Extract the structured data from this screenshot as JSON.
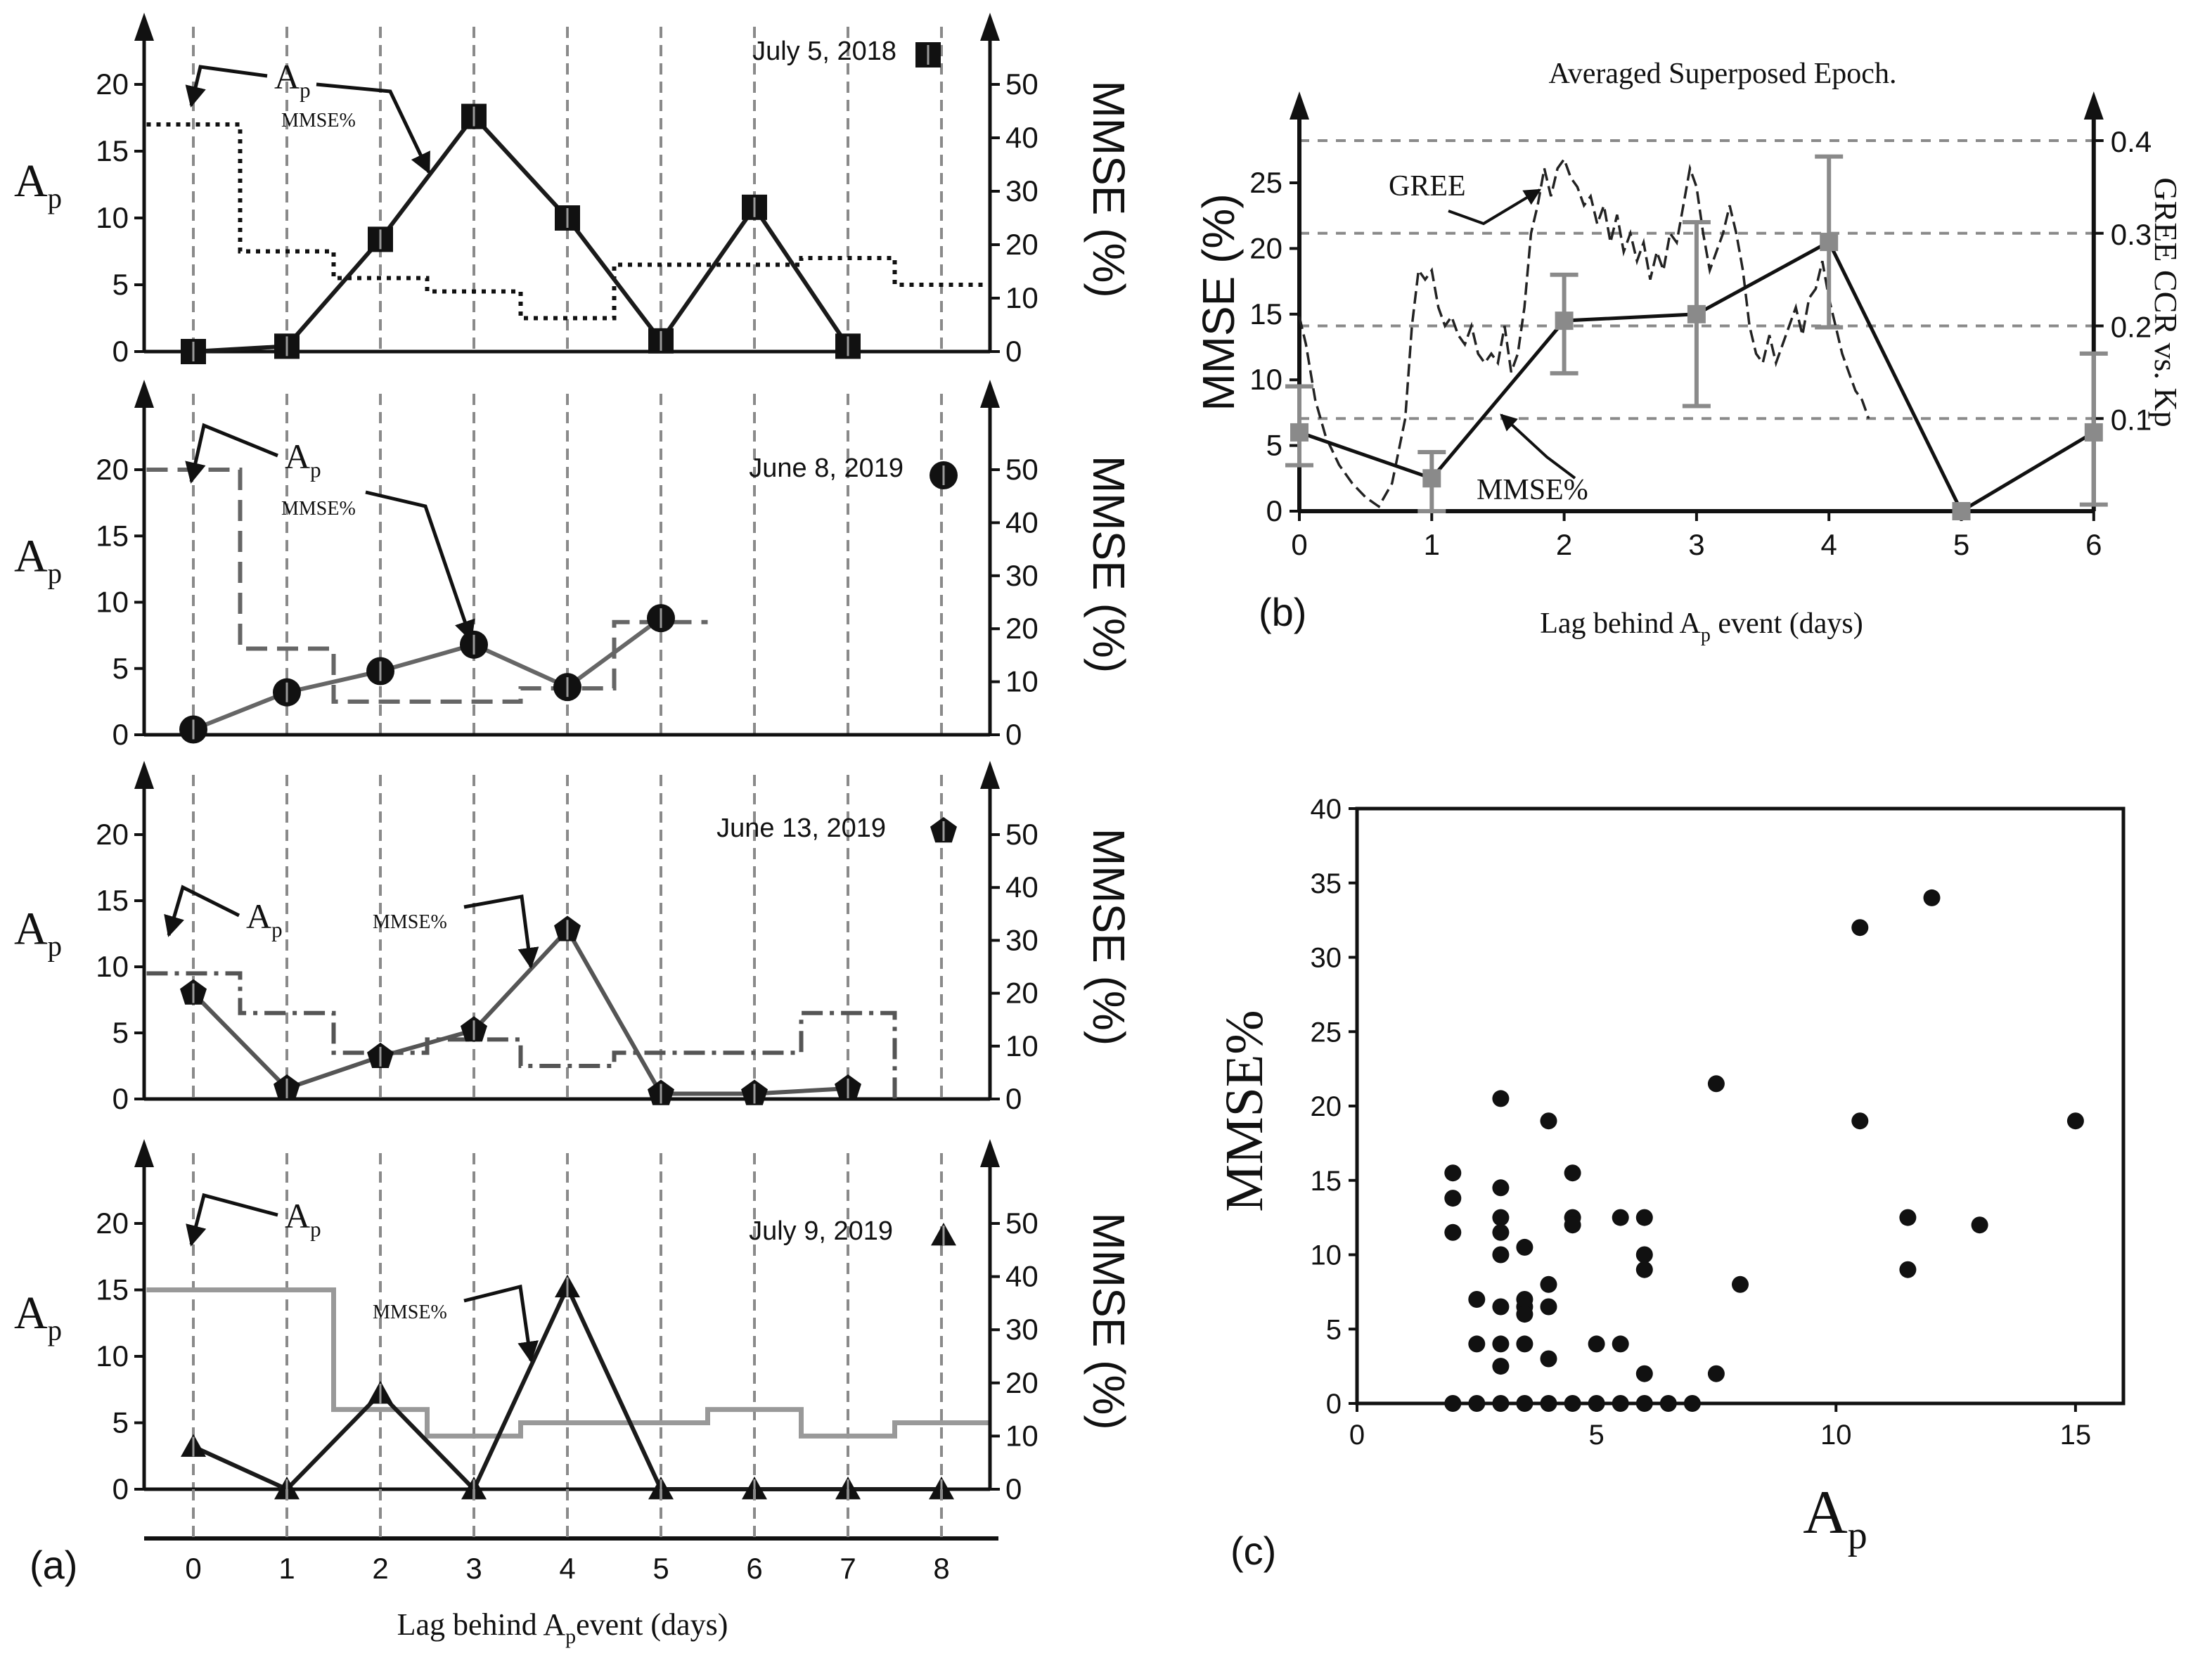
{
  "labels": {
    "panel_a": "(a)",
    "panel_b": "(b)",
    "panel_c": "(c)",
    "ap": "A",
    "ap_sub": "p",
    "mmse_right": "MMSE (%)",
    "mmse_pct": "MMSE%",
    "xlabel_a_pre": "Lag behind A",
    "xlabel_a_sub": "p",
    "xlabel_a_post": "event (days)",
    "xlabel_b_pre": "Lag behind A",
    "xlabel_b_sub": "p",
    "xlabel_b_post": " event (days)"
  },
  "chart_data": [
    {
      "id": "a1",
      "type": "line",
      "date": "July 5, 2018",
      "marker": "square",
      "lags": [
        0,
        1,
        2,
        3,
        4,
        5,
        6,
        7,
        8
      ],
      "mmse": [
        0,
        1,
        21,
        44,
        25,
        2,
        27,
        1,
        null
      ],
      "ap_step": [
        [
          -0.5,
          17
        ],
        [
          0.5,
          17
        ],
        [
          0.5,
          7.5
        ],
        [
          1.5,
          7.5
        ],
        [
          1.5,
          5.5
        ],
        [
          2.5,
          5.5
        ],
        [
          2.5,
          4.5
        ],
        [
          3.5,
          4.5
        ],
        [
          3.5,
          2.5
        ],
        [
          4.5,
          2.5
        ],
        [
          4.5,
          6.5
        ],
        [
          6.5,
          6.5
        ],
        [
          6.5,
          7
        ],
        [
          7.5,
          7
        ],
        [
          7.5,
          5
        ],
        [
          8.5,
          5
        ]
      ],
      "ap_style": "dotted",
      "ap_color": "#111111",
      "line_color": "#1a1a1a",
      "yleft_ticks": [
        0,
        5,
        10,
        15,
        20
      ],
      "yright_ticks": [
        0,
        10,
        20,
        30,
        40,
        50
      ],
      "ap_annotation": "A",
      "mmse_annotation": "MMSE%"
    },
    {
      "id": "a2",
      "type": "line",
      "date": "June 8, 2019",
      "marker": "circle",
      "lags": [
        0,
        1,
        2,
        3,
        4,
        5
      ],
      "mmse": [
        1,
        8,
        12,
        17,
        9,
        22
      ],
      "ap_step": [
        [
          -0.5,
          20
        ],
        [
          0.5,
          20
        ],
        [
          0.5,
          6.5
        ],
        [
          1.5,
          6.5
        ],
        [
          1.5,
          2.5
        ],
        [
          3.5,
          2.5
        ],
        [
          3.5,
          3.5
        ],
        [
          4.5,
          3.5
        ],
        [
          4.5,
          8.5
        ],
        [
          5.5,
          8.5
        ]
      ],
      "ap_style": "dashed",
      "ap_color": "#666666",
      "line_color": "#666666",
      "yleft_ticks": [
        0,
        5,
        10,
        15,
        20
      ],
      "yright_ticks": [
        0,
        10,
        20,
        30,
        40,
        50
      ],
      "ap_annotation": "A",
      "mmse_annotation": "MMSE%"
    },
    {
      "id": "a3",
      "type": "line",
      "date": "June 13, 2019",
      "marker": "pentagon",
      "lags": [
        0,
        1,
        2,
        3,
        4,
        5,
        6,
        7
      ],
      "mmse": [
        20,
        2,
        8,
        13,
        32,
        1,
        1,
        2
      ],
      "ap_step": [
        [
          -0.5,
          9.5
        ],
        [
          0.5,
          9.5
        ],
        [
          0.5,
          6.5
        ],
        [
          1.5,
          6.5
        ],
        [
          1.5,
          3.5
        ],
        [
          2.5,
          3.5
        ],
        [
          2.5,
          4.5
        ],
        [
          3.5,
          4.5
        ],
        [
          3.5,
          2.5
        ],
        [
          4.5,
          2.5
        ],
        [
          4.5,
          3.5
        ],
        [
          6.5,
          3.5
        ],
        [
          6.5,
          6.5
        ],
        [
          7.5,
          6.5
        ],
        [
          7.5,
          0
        ]
      ],
      "ap_style": "dashdot",
      "ap_color": "#555555",
      "line_color": "#555555",
      "yleft_ticks": [
        0,
        5,
        10,
        15,
        20
      ],
      "yright_ticks": [
        0,
        10,
        20,
        30,
        40,
        50
      ],
      "ap_annotation": "A",
      "mmse_annotation": "MMSE%"
    },
    {
      "id": "a4",
      "type": "line",
      "date": "July 9, 2019",
      "marker": "triangle",
      "lags": [
        0,
        1,
        2,
        3,
        4,
        5,
        6,
        7,
        8
      ],
      "mmse": [
        8,
        0,
        18,
        0,
        38,
        0,
        0,
        0,
        0
      ],
      "ap_step": [
        [
          -0.5,
          15
        ],
        [
          1.5,
          15
        ],
        [
          1.5,
          6
        ],
        [
          2.5,
          6
        ],
        [
          2.5,
          4
        ],
        [
          3.5,
          4
        ],
        [
          3.5,
          5
        ],
        [
          5.5,
          5
        ],
        [
          5.5,
          6
        ],
        [
          6.5,
          6
        ],
        [
          6.5,
          4
        ],
        [
          7.5,
          4
        ],
        [
          7.5,
          5
        ],
        [
          8.5,
          5
        ]
      ],
      "ap_style": "solid",
      "ap_color": "#999999",
      "line_color": "#1a1a1a",
      "yleft_ticks": [
        0,
        5,
        10,
        15,
        20
      ],
      "yright_ticks": [
        0,
        10,
        20,
        30,
        40,
        50
      ],
      "ap_annotation": "A",
      "mmse_annotation": "MMSE%",
      "x_ticks": [
        0,
        1,
        2,
        3,
        4,
        5,
        6,
        7,
        8
      ]
    },
    {
      "id": "b",
      "type": "line",
      "title": "Averaged Superposed Epoch.",
      "xlabel": "Lag behind Ap event (days)",
      "ylabel": "MMSE (%)",
      "y2label": "GREE CCR vs. Kp",
      "x": [
        0,
        1,
        2,
        3,
        4,
        5,
        6
      ],
      "mmse": [
        6,
        2.5,
        14.5,
        15,
        20.5,
        0,
        6
      ],
      "error": [
        [
          3.5,
          9.5
        ],
        [
          0,
          4.5
        ],
        [
          10.5,
          18
        ],
        [
          8,
          22
        ],
        [
          14,
          27
        ],
        [
          0,
          0
        ],
        [
          0.5,
          12
        ]
      ],
      "gree_ccr": [
        [
          0,
          0.21
        ],
        [
          0.05,
          0.18
        ],
        [
          0.12,
          0.12
        ],
        [
          0.2,
          0.08
        ],
        [
          0.3,
          0.05
        ],
        [
          0.4,
          0.03
        ],
        [
          0.5,
          0.015
        ],
        [
          0.6,
          0.005
        ],
        [
          0.7,
          0.03
        ],
        [
          0.8,
          0.1
        ],
        [
          0.85,
          0.2
        ],
        [
          0.9,
          0.26
        ],
        [
          0.95,
          0.25
        ],
        [
          1.0,
          0.26
        ],
        [
          1.05,
          0.22
        ],
        [
          1.1,
          0.2
        ],
        [
          1.15,
          0.21
        ],
        [
          1.2,
          0.19
        ],
        [
          1.25,
          0.18
        ],
        [
          1.3,
          0.2
        ],
        [
          1.35,
          0.17
        ],
        [
          1.4,
          0.16
        ],
        [
          1.45,
          0.17
        ],
        [
          1.5,
          0.16
        ],
        [
          1.55,
          0.2
        ],
        [
          1.6,
          0.15
        ],
        [
          1.65,
          0.17
        ],
        [
          1.7,
          0.22
        ],
        [
          1.75,
          0.3
        ],
        [
          1.8,
          0.33
        ],
        [
          1.85,
          0.37
        ],
        [
          1.9,
          0.34
        ],
        [
          1.95,
          0.37
        ],
        [
          2.0,
          0.38
        ],
        [
          2.05,
          0.36
        ],
        [
          2.1,
          0.35
        ],
        [
          2.15,
          0.33
        ],
        [
          2.2,
          0.34
        ],
        [
          2.25,
          0.31
        ],
        [
          2.3,
          0.33
        ],
        [
          2.35,
          0.29
        ],
        [
          2.4,
          0.32
        ],
        [
          2.45,
          0.28
        ],
        [
          2.5,
          0.3
        ],
        [
          2.55,
          0.27
        ],
        [
          2.6,
          0.29
        ],
        [
          2.65,
          0.25
        ],
        [
          2.7,
          0.28
        ],
        [
          2.75,
          0.26
        ],
        [
          2.8,
          0.3
        ],
        [
          2.85,
          0.29
        ],
        [
          2.9,
          0.33
        ],
        [
          2.95,
          0.37
        ],
        [
          3.0,
          0.35
        ],
        [
          3.05,
          0.3
        ],
        [
          3.1,
          0.26
        ],
        [
          3.15,
          0.28
        ],
        [
          3.2,
          0.3
        ],
        [
          3.25,
          0.33
        ],
        [
          3.3,
          0.3
        ],
        [
          3.35,
          0.26
        ],
        [
          3.4,
          0.2
        ],
        [
          3.45,
          0.17
        ],
        [
          3.5,
          0.16
        ],
        [
          3.55,
          0.19
        ],
        [
          3.6,
          0.16
        ],
        [
          3.65,
          0.18
        ],
        [
          3.7,
          0.2
        ],
        [
          3.75,
          0.22
        ],
        [
          3.8,
          0.19
        ],
        [
          3.85,
          0.23
        ],
        [
          3.9,
          0.24
        ],
        [
          3.95,
          0.27
        ],
        [
          4.0,
          0.23
        ],
        [
          4.05,
          0.2
        ],
        [
          4.1,
          0.17
        ],
        [
          4.15,
          0.15
        ],
        [
          4.2,
          0.13
        ],
        [
          4.25,
          0.12
        ],
        [
          4.3,
          0.1
        ]
      ],
      "xlim": [
        0,
        6
      ],
      "ylim": [
        0,
        30
      ],
      "y2lim": [
        0,
        0.4
      ],
      "x_ticks": [
        0,
        1,
        2,
        3,
        4,
        5,
        6
      ],
      "y_ticks": [
        0,
        5,
        10,
        15,
        20,
        25
      ],
      "y2_ticks": [
        "0.1",
        "0.2",
        "0.3",
        "0.4"
      ],
      "annotations": [
        "GREE",
        "MMSE%"
      ]
    },
    {
      "id": "c",
      "type": "scatter",
      "xlabel": "A",
      "xlabel_sub": "p",
      "ylabel": "MMSE%",
      "xlim": [
        0,
        16
      ],
      "ylim": [
        0,
        40
      ],
      "x_ticks": [
        0,
        5,
        10,
        15
      ],
      "y_ticks": [
        0,
        5,
        10,
        15,
        20,
        25,
        30,
        35,
        40
      ],
      "points": [
        [
          2,
          15.5
        ],
        [
          2,
          13.8
        ],
        [
          2,
          11.5
        ],
        [
          2.5,
          7
        ],
        [
          2.5,
          4
        ],
        [
          3,
          20.5
        ],
        [
          3,
          14.5
        ],
        [
          3,
          12.5
        ],
        [
          3,
          11.5
        ],
        [
          3,
          10
        ],
        [
          3,
          6.5
        ],
        [
          3,
          4
        ],
        [
          3,
          2.5
        ],
        [
          3.5,
          10.5
        ],
        [
          3.5,
          7
        ],
        [
          3.5,
          6.5
        ],
        [
          3.5,
          6
        ],
        [
          3.5,
          4
        ],
        [
          4,
          19
        ],
        [
          4,
          8
        ],
        [
          4,
          6.5
        ],
        [
          4,
          3
        ],
        [
          4.5,
          15.5
        ],
        [
          4.5,
          12.5
        ],
        [
          4.5,
          12
        ],
        [
          5,
          4
        ],
        [
          5.5,
          12.5
        ],
        [
          5.5,
          4
        ],
        [
          6,
          12.5
        ],
        [
          6,
          10
        ],
        [
          6,
          9
        ],
        [
          6,
          2
        ],
        [
          7.5,
          21.5
        ],
        [
          7.5,
          2
        ],
        [
          8,
          8
        ],
        [
          10.5,
          32
        ],
        [
          10.5,
          19
        ],
        [
          11.5,
          12.5
        ],
        [
          11.5,
          9
        ],
        [
          12,
          34
        ],
        [
          13,
          12
        ],
        [
          15,
          19
        ],
        [
          2,
          0
        ],
        [
          2.5,
          0
        ],
        [
          3,
          0
        ],
        [
          3.5,
          0
        ],
        [
          4,
          0
        ],
        [
          4.5,
          0
        ],
        [
          5,
          0
        ],
        [
          5.5,
          0
        ],
        [
          6,
          0
        ],
        [
          6.5,
          0
        ],
        [
          7,
          0
        ]
      ]
    }
  ]
}
